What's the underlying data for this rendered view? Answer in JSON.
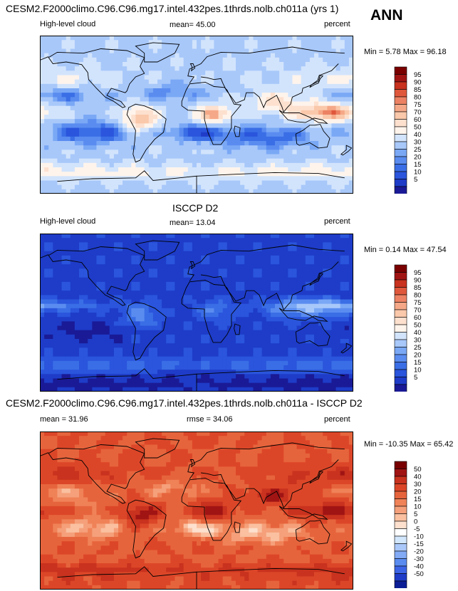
{
  "season": "ANN",
  "colors": {
    "abs_scale": [
      "#1a1a96",
      "#1e3cc8",
      "#2a55dc",
      "#3a6ee6",
      "#5a8cf0",
      "#7aa8f5",
      "#a8c8fa",
      "#d2e4fc",
      "#fff4ec",
      "#fde0ce",
      "#fac8aa",
      "#f5a887",
      "#ec8263",
      "#e0583c",
      "#c8321e",
      "#a01414",
      "#7a0000"
    ],
    "diff_scale": [
      "#0c1e96",
      "#1e3cc8",
      "#3c64e6",
      "#5a8cf0",
      "#82aaf5",
      "#aac8fa",
      "#d2e6fc",
      "#ffffff",
      "#fde0ce",
      "#fac0a0",
      "#f5a07a",
      "#f08258",
      "#e6643c",
      "#dc4628",
      "#c8321e",
      "#a01414",
      "#780000"
    ]
  },
  "chart_data": [
    {
      "type": "heatmap",
      "title": "CESM2.F2000climo.C96.C96.mg17.intel.432pes.1thrds.nolb.ch011a (yrs 1)",
      "left_label": "High-level cloud",
      "mean_label": "mean=  45.00",
      "units": "percent",
      "minmax_label": "Min =  5.78 Max =  96.18",
      "min": 5.78,
      "max": 96.18,
      "mean": 45.0,
      "colorbar_levels": [
        "95",
        "90",
        "85",
        "80",
        "75",
        "70",
        "60",
        "50",
        "40",
        "30",
        "25",
        "20",
        "15",
        "10",
        "5"
      ]
    },
    {
      "type": "heatmap",
      "title": "ISCCP D2",
      "left_label": "High-level cloud",
      "mean_label": "mean=  13.04",
      "units": "percent",
      "minmax_label": "Min =  0.14 Max =  47.54",
      "min": 0.14,
      "max": 47.54,
      "mean": 13.04,
      "colorbar_levels": [
        "95",
        "90",
        "85",
        "80",
        "75",
        "70",
        "60",
        "50",
        "40",
        "30",
        "25",
        "20",
        "15",
        "10",
        "5"
      ]
    },
    {
      "type": "heatmap",
      "title": "CESM2.F2000climo.C96.C96.mg17.intel.432pes.1thrds.nolb.ch011a - ISCCP D2",
      "left_label": "mean =  31.96",
      "mean_label": "rmse =  34.06",
      "units": "percent",
      "minmax_label": "Min = -10.35 Max =  65.42",
      "min": -10.35,
      "max": 65.42,
      "mean": 31.96,
      "rmse": 34.06,
      "colorbar_levels": [
        "50",
        "40",
        "30",
        "20",
        "15",
        "10",
        "5",
        "0",
        "-5",
        "-10",
        "-15",
        "-20",
        "-30",
        "-40",
        "-50"
      ]
    }
  ]
}
